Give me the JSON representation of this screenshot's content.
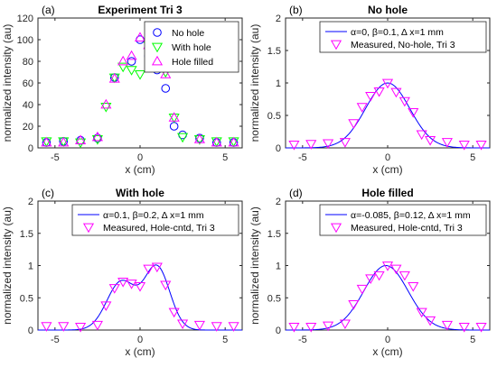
{
  "chart_data": [
    {
      "type": "scatter",
      "panel_label": "(a)",
      "title": "Experiment Tri 3",
      "xlabel": "x (cm)",
      "ylabel": "normalized intensity (au)",
      "xlim": [
        -6,
        6
      ],
      "ylim": [
        0,
        120
      ],
      "xticks": [
        -5,
        0,
        5
      ],
      "yticks": [
        0,
        20,
        40,
        60,
        80,
        100,
        120
      ],
      "legend_position": "top-right",
      "series": [
        {
          "name": "No hole",
          "marker": "circle",
          "color": "#0000ff",
          "x": [
            -5.5,
            -4.5,
            -3.5,
            -2.5,
            -1.5,
            -0.5,
            0,
            0.5,
            1,
            1.5,
            2,
            2.5,
            3.5,
            4.5,
            5.5
          ],
          "y": [
            5,
            6,
            7,
            9,
            65,
            80,
            100,
            85,
            72,
            55,
            20,
            12,
            9,
            5,
            5
          ]
        },
        {
          "name": "With hole",
          "marker": "triangle-down",
          "color": "#00ff00",
          "x": [
            -5.5,
            -4.5,
            -3.5,
            -2.5,
            -2,
            -1.5,
            -1,
            -0.5,
            0,
            0.5,
            1,
            1.5,
            2,
            2.5,
            3.5,
            4.5,
            5.5
          ],
          "y": [
            6,
            6,
            5,
            8,
            38,
            65,
            75,
            72,
            68,
            95,
            98,
            70,
            28,
            10,
            8,
            6,
            6
          ]
        },
        {
          "name": "Hole filled",
          "marker": "triangle-up",
          "color": "#ff00ff",
          "x": [
            -5.5,
            -4.5,
            -3.5,
            -2.5,
            -2,
            -1.5,
            -1,
            -0.5,
            0,
            0.5,
            1,
            1.5,
            2,
            3.5,
            4.5,
            5.5
          ],
          "y": [
            5,
            5,
            7,
            10,
            40,
            64,
            80,
            85,
            102,
            95,
            85,
            68,
            28,
            8,
            5,
            5
          ]
        }
      ]
    },
    {
      "type": "line",
      "panel_label": "(b)",
      "title": "No hole",
      "xlabel": "x (cm)",
      "ylabel": "normalized intensity (au)",
      "xlim": [
        -6,
        6
      ],
      "ylim": [
        0,
        2
      ],
      "xticks": [
        -5,
        0,
        5
      ],
      "yticks": [
        0,
        0.5,
        1,
        1.5,
        2
      ],
      "legend_position": "top-right",
      "legend": [
        "α=0, β=0.1, Δ x=1 mm",
        "Measured, No-hole, Tri 3"
      ],
      "model": {
        "type": "gaussian",
        "mu": 0,
        "amplitude": 1.0,
        "sigma": 1.3
      },
      "measured": {
        "x": [
          -5.5,
          -4.5,
          -3.5,
          -2.5,
          -2,
          -1.5,
          -1,
          -0.5,
          0,
          0.5,
          1,
          1.5,
          2,
          2.5,
          3.5,
          4.5,
          5.5
        ],
        "y": [
          0.05,
          0.06,
          0.07,
          0.09,
          0.38,
          0.63,
          0.8,
          0.87,
          1.0,
          0.86,
          0.72,
          0.55,
          0.21,
          0.12,
          0.09,
          0.05,
          0.05
        ]
      }
    },
    {
      "type": "line",
      "panel_label": "(c)",
      "title": "With hole",
      "xlabel": "x (cm)",
      "ylabel": "normalized intensity (au)",
      "xlim": [
        -6,
        6
      ],
      "ylim": [
        0,
        2
      ],
      "xticks": [
        -5,
        0,
        5
      ],
      "yticks": [
        0,
        0.5,
        1,
        1.5,
        2
      ],
      "legend_position": "top-right",
      "legend": [
        "α=0.1, β=0.2, Δ x=1 mm",
        "Measured, Hole-cntd, Tri 3"
      ],
      "model": {
        "type": "double-gaussian",
        "components": [
          {
            "mu": -1.1,
            "amplitude": 0.75,
            "sigma": 0.85
          },
          {
            "mu": 1.0,
            "amplitude": 0.97,
            "sigma": 0.75
          }
        ]
      },
      "measured": {
        "x": [
          -5.5,
          -4.5,
          -3.5,
          -2.5,
          -2,
          -1.5,
          -1,
          -0.5,
          0,
          0.5,
          1,
          1.5,
          2,
          2.5,
          3.5,
          4.5,
          5.5
        ],
        "y": [
          0.06,
          0.06,
          0.05,
          0.08,
          0.38,
          0.65,
          0.75,
          0.72,
          0.68,
          0.95,
          0.98,
          0.7,
          0.28,
          0.1,
          0.08,
          0.06,
          0.06
        ]
      }
    },
    {
      "type": "line",
      "panel_label": "(d)",
      "title": "Hole filled",
      "xlabel": "x (cm)",
      "ylabel": "normalized intensity (au)",
      "xlim": [
        -6,
        6
      ],
      "ylim": [
        0,
        2
      ],
      "xticks": [
        -5,
        0,
        5
      ],
      "yticks": [
        0,
        0.5,
        1,
        1.5,
        2
      ],
      "legend_position": "top-right",
      "legend": [
        "α=-0.085, β=0.12, Δ x=1 mm",
        "Measured, Hole-cntd, Tri 3"
      ],
      "model": {
        "type": "gaussian",
        "mu": -0.1,
        "amplitude": 1.0,
        "sigma": 1.3
      },
      "measured": {
        "x": [
          -5.5,
          -4.5,
          -3.5,
          -2.5,
          -2,
          -1.5,
          -1,
          -0.5,
          0,
          0.5,
          1,
          1.5,
          2,
          2.5,
          3.5,
          4.5,
          5.5
        ],
        "y": [
          0.05,
          0.05,
          0.07,
          0.1,
          0.4,
          0.64,
          0.8,
          0.85,
          1.0,
          0.95,
          0.85,
          0.68,
          0.28,
          0.15,
          0.08,
          0.05,
          0.05
        ]
      }
    }
  ],
  "styles": {
    "model_line_color": "#0000ff",
    "measured_marker_color": "#ff00ff",
    "axis_color": "#262626"
  }
}
